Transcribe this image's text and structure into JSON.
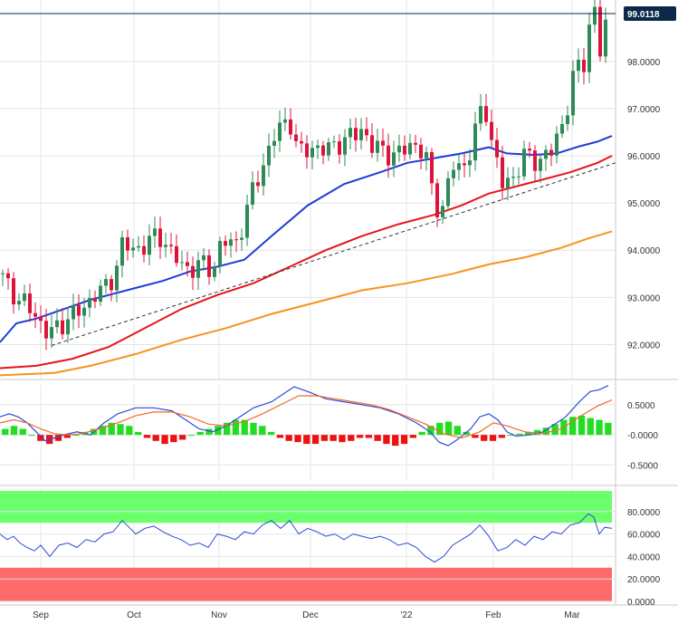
{
  "chart_data": [
    {
      "type": "candlestick",
      "instrument_price_tag": "99.0118",
      "y_ticks": [
        "92.0000",
        "93.0000",
        "94.0000",
        "95.0000",
        "96.0000",
        "97.0000",
        "98.0000"
      ],
      "ylim": [
        91.28,
        99.3
      ],
      "x_ticks": [
        "Sep",
        "Oct",
        "Nov",
        "Dec",
        "'22",
        "Feb",
        "Mar"
      ],
      "grid": true,
      "colors": {
        "up": "#2e8b57",
        "down": "#dc143c",
        "sma_fast": "#1f3bd6",
        "sma_mid": "#e8141c",
        "sma_slow": "#f7931e",
        "trendline": "#333333",
        "price_tag_bg": "#0b2a4a"
      },
      "moving_averages": [
        {
          "role": "fast",
          "points": [
            [
              0,
              92.05
            ],
            [
              18,
              92.45
            ],
            [
              40,
              92.55
            ],
            [
              70,
              92.75
            ],
            [
              100,
              92.95
            ],
            [
              140,
              93.15
            ],
            [
              180,
              93.35
            ],
            [
              210,
              93.55
            ],
            [
              240,
              93.65
            ],
            [
              270,
              93.8
            ],
            [
              300,
              94.3
            ],
            [
              340,
              94.95
            ],
            [
              380,
              95.4
            ],
            [
              420,
              95.65
            ],
            [
              450,
              95.85
            ],
            [
              480,
              95.95
            ],
            [
              510,
              96.05
            ],
            [
              540,
              96.18
            ],
            [
              560,
              96.05
            ],
            [
              590,
              96.02
            ],
            [
              615,
              96.05
            ],
            [
              640,
              96.2
            ],
            [
              660,
              96.3
            ],
            [
              676,
              96.42
            ]
          ]
        },
        {
          "role": "mid",
          "points": [
            [
              0,
              91.5
            ],
            [
              40,
              91.55
            ],
            [
              80,
              91.7
            ],
            [
              120,
              91.95
            ],
            [
              160,
              92.35
            ],
            [
              200,
              92.75
            ],
            [
              240,
              93.05
            ],
            [
              280,
              93.3
            ],
            [
              320,
              93.65
            ],
            [
              360,
              94.0
            ],
            [
              400,
              94.3
            ],
            [
              440,
              94.55
            ],
            [
              480,
              94.75
            ],
            [
              510,
              94.95
            ],
            [
              540,
              95.2
            ],
            [
              570,
              95.35
            ],
            [
              600,
              95.5
            ],
            [
              630,
              95.65
            ],
            [
              660,
              95.85
            ],
            [
              676,
              96.0
            ]
          ]
        },
        {
          "role": "slow",
          "points": [
            [
              0,
              91.35
            ],
            [
              60,
              91.4
            ],
            [
              100,
              91.55
            ],
            [
              150,
              91.8
            ],
            [
              200,
              92.1
            ],
            [
              250,
              92.35
            ],
            [
              300,
              92.65
            ],
            [
              350,
              92.9
            ],
            [
              400,
              93.15
            ],
            [
              450,
              93.3
            ],
            [
              500,
              93.5
            ],
            [
              540,
              93.7
            ],
            [
              580,
              93.85
            ],
            [
              620,
              94.05
            ],
            [
              650,
              94.25
            ],
            [
              676,
              94.4
            ]
          ]
        }
      ],
      "trendline": [
        [
          57,
          91.98
        ],
        [
          680,
          95.85
        ]
      ]
    },
    {
      "type": "line",
      "indicator": "MACD",
      "y_ticks": [
        "0.5000",
        "-0.0000",
        "-0.5000"
      ],
      "ylim": [
        -0.75,
        0.83
      ],
      "series": [
        {
          "role": "macd_line",
          "color": "#2d4bd6",
          "points": [
            [
              0,
              0.3
            ],
            [
              10,
              0.35
            ],
            [
              20,
              0.3
            ],
            [
              30,
              0.2
            ],
            [
              40,
              0.05
            ],
            [
              50,
              -0.1
            ],
            [
              60,
              -0.05
            ],
            [
              70,
              0.0
            ],
            [
              85,
              0.05
            ],
            [
              100,
              0.0
            ],
            [
              115,
              0.2
            ],
            [
              130,
              0.35
            ],
            [
              150,
              0.45
            ],
            [
              170,
              0.45
            ],
            [
              190,
              0.4
            ],
            [
              205,
              0.25
            ],
            [
              220,
              0.1
            ],
            [
              235,
              0.05
            ],
            [
              250,
              0.15
            ],
            [
              265,
              0.3
            ],
            [
              280,
              0.45
            ],
            [
              300,
              0.55
            ],
            [
              315,
              0.7
            ],
            [
              325,
              0.8
            ],
            [
              340,
              0.72
            ],
            [
              360,
              0.6
            ],
            [
              380,
              0.55
            ],
            [
              400,
              0.5
            ],
            [
              420,
              0.45
            ],
            [
              440,
              0.35
            ],
            [
              460,
              0.2
            ],
            [
              475,
              0.05
            ],
            [
              485,
              -0.12
            ],
            [
              495,
              -0.18
            ],
            [
              505,
              -0.08
            ],
            [
              520,
              0.1
            ],
            [
              530,
              0.3
            ],
            [
              540,
              0.35
            ],
            [
              550,
              0.25
            ],
            [
              560,
              0.05
            ],
            [
              570,
              -0.02
            ],
            [
              585,
              0.0
            ],
            [
              600,
              0.05
            ],
            [
              615,
              0.2
            ],
            [
              625,
              0.3
            ],
            [
              640,
              0.55
            ],
            [
              652,
              0.72
            ],
            [
              662,
              0.75
            ],
            [
              672,
              0.82
            ]
          ]
        },
        {
          "role": "signal",
          "color": "#f06b2a",
          "points": [
            [
              0,
              0.2
            ],
            [
              15,
              0.25
            ],
            [
              30,
              0.2
            ],
            [
              45,
              0.1
            ],
            [
              60,
              0.02
            ],
            [
              75,
              0.0
            ],
            [
              90,
              0.02
            ],
            [
              110,
              0.1
            ],
            [
              130,
              0.2
            ],
            [
              150,
              0.32
            ],
            [
              170,
              0.38
            ],
            [
              190,
              0.38
            ],
            [
              210,
              0.3
            ],
            [
              230,
              0.18
            ],
            [
              250,
              0.15
            ],
            [
              270,
              0.22
            ],
            [
              290,
              0.35
            ],
            [
              310,
              0.5
            ],
            [
              330,
              0.65
            ],
            [
              350,
              0.65
            ],
            [
              370,
              0.6
            ],
            [
              390,
              0.55
            ],
            [
              410,
              0.5
            ],
            [
              430,
              0.42
            ],
            [
              450,
              0.3
            ],
            [
              470,
              0.18
            ],
            [
              490,
              0.02
            ],
            [
              510,
              -0.05
            ],
            [
              530,
              0.05
            ],
            [
              545,
              0.2
            ],
            [
              560,
              0.15
            ],
            [
              580,
              0.05
            ],
            [
              600,
              0.02
            ],
            [
              620,
              0.1
            ],
            [
              640,
              0.3
            ],
            [
              660,
              0.48
            ],
            [
              676,
              0.58
            ]
          ]
        }
      ],
      "histogram": [
        0.1,
        0.15,
        0.1,
        0.0,
        -0.1,
        -0.15,
        -0.1,
        -0.05,
        0.0,
        0.05,
        0.1,
        0.15,
        0.2,
        0.18,
        0.15,
        0.05,
        -0.05,
        -0.1,
        -0.15,
        -0.12,
        -0.08,
        0.0,
        0.05,
        0.1,
        0.15,
        0.2,
        0.25,
        0.25,
        0.2,
        0.15,
        0.05,
        -0.05,
        -0.1,
        -0.12,
        -0.15,
        -0.15,
        -0.1,
        -0.1,
        -0.12,
        -0.1,
        -0.05,
        -0.05,
        -0.1,
        -0.15,
        -0.18,
        -0.15,
        -0.05,
        0.05,
        0.15,
        0.2,
        0.22,
        0.15,
        0.05,
        -0.05,
        -0.1,
        -0.1,
        -0.05,
        0.0,
        0.02,
        0.05,
        0.08,
        0.12,
        0.18,
        0.25,
        0.3,
        0.32,
        0.28,
        0.25,
        0.2
      ]
    },
    {
      "type": "line",
      "indicator": "RSI",
      "y_ticks": [
        "80.0000",
        "60.0000",
        "40.0000",
        "20.0000",
        "0.0000"
      ],
      "ylim": [
        0,
        100
      ],
      "bands": {
        "overbought": 70,
        "oversold": 30
      },
      "series": [
        {
          "role": "rsi",
          "color": "#2d4bd6",
          "points": [
            [
              0,
              60
            ],
            [
              8,
              55
            ],
            [
              15,
              58
            ],
            [
              22,
              52
            ],
            [
              30,
              48
            ],
            [
              38,
              45
            ],
            [
              45,
              50
            ],
            [
              55,
              40
            ],
            [
              65,
              50
            ],
            [
              75,
              52
            ],
            [
              85,
              48
            ],
            [
              95,
              55
            ],
            [
              105,
              53
            ],
            [
              115,
              60
            ],
            [
              125,
              62
            ],
            [
              135,
              72
            ],
            [
              140,
              68
            ],
            [
              150,
              60
            ],
            [
              160,
              65
            ],
            [
              170,
              67
            ],
            [
              180,
              62
            ],
            [
              190,
              58
            ],
            [
              200,
              55
            ],
            [
              210,
              50
            ],
            [
              220,
              52
            ],
            [
              230,
              48
            ],
            [
              240,
              60
            ],
            [
              250,
              58
            ],
            [
              260,
              55
            ],
            [
              270,
              62
            ],
            [
              280,
              60
            ],
            [
              290,
              68
            ],
            [
              300,
              72
            ],
            [
              310,
              65
            ],
            [
              320,
              72
            ],
            [
              330,
              60
            ],
            [
              340,
              65
            ],
            [
              350,
              62
            ],
            [
              360,
              58
            ],
            [
              370,
              60
            ],
            [
              380,
              55
            ],
            [
              390,
              60
            ],
            [
              400,
              58
            ],
            [
              410,
              56
            ],
            [
              420,
              58
            ],
            [
              430,
              55
            ],
            [
              440,
              50
            ],
            [
              450,
              52
            ],
            [
              460,
              48
            ],
            [
              470,
              40
            ],
            [
              480,
              35
            ],
            [
              490,
              40
            ],
            [
              500,
              50
            ],
            [
              510,
              55
            ],
            [
              520,
              60
            ],
            [
              530,
              68
            ],
            [
              540,
              58
            ],
            [
              550,
              45
            ],
            [
              560,
              48
            ],
            [
              570,
              55
            ],
            [
              580,
              50
            ],
            [
              590,
              58
            ],
            [
              600,
              55
            ],
            [
              610,
              62
            ],
            [
              620,
              60
            ],
            [
              630,
              68
            ],
            [
              640,
              70
            ],
            [
              650,
              78
            ],
            [
              656,
              75
            ],
            [
              662,
              60
            ],
            [
              668,
              66
            ],
            [
              676,
              65
            ]
          ]
        }
      ]
    }
  ]
}
